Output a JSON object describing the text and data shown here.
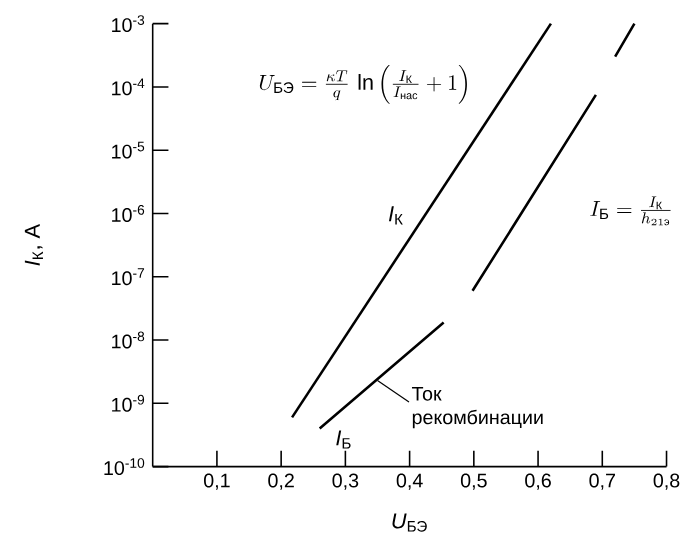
{
  "chart_data": {
    "type": "line",
    "log": "y",
    "xlabel": "*U*$_{БЭ}$",
    "ylabel": "*I*$_{К}$, A",
    "xlim": [
      0,
      0.8
    ],
    "ylim": [
      1e-10,
      0.001
    ],
    "xticks": [
      {
        "value": 0.1,
        "label": "0,1"
      },
      {
        "value": 0.2,
        "label": "0,2"
      },
      {
        "value": 0.3,
        "label": "0,3"
      },
      {
        "value": 0.4,
        "label": "0,4"
      },
      {
        "value": 0.5,
        "label": "0,5"
      },
      {
        "value": 0.6,
        "label": "0,6"
      },
      {
        "value": 0.7,
        "label": "0,7"
      },
      {
        "value": 0.8,
        "label": "0,8"
      }
    ],
    "yticks": [
      {
        "value": 1e-10,
        "label": "10$^{-10}$"
      },
      {
        "value": 1e-09,
        "label": "10$^{-9}$"
      },
      {
        "value": 1e-08,
        "label": "10$^{-8}$"
      },
      {
        "value": 1e-07,
        "label": "10$^{-7}$"
      },
      {
        "value": 1e-06,
        "label": "10$^{-6}$"
      },
      {
        "value": 1e-05,
        "label": "10$^{-5}$"
      },
      {
        "value": 0.0001,
        "label": "10$^{-4}$"
      },
      {
        "value": 0.001,
        "label": "10$^{-3}$"
      }
    ],
    "series": [
      {
        "name": "*I*$_{К}$",
        "color": "#000000",
        "x": [
          0.217,
          0.62
        ],
        "values": [
          6e-10,
          0.001
        ]
      },
      {
        "name": "*I*$_{Б}$",
        "color": "#000000",
        "x": [
          0.26,
          0.453,
          0.475,
          0.498,
          0.69,
          0.705,
          0.72,
          0.75
        ],
        "values": [
          4e-10,
          1.9e-08,
          null,
          6e-08,
          7.5e-05,
          null,
          0.0003,
          0.001
        ]
      }
    ],
    "annotations": [
      "U_{\\text{БЭ}}=\\frac{\\kappa T}{q}\\,\\ln\\left(\\frac{I_{\\text{К}}}{I_{\\text{нас}}}+1\\right)",
      "I_{\\text{Б}}=\\frac{I_{\\text{К}}}{h_{21\\text{э}}}",
      {
        "text": "Ток рекомбинации",
        "x": 0.35,
        "y": 2.3e-09
      }
    ]
  }
}
